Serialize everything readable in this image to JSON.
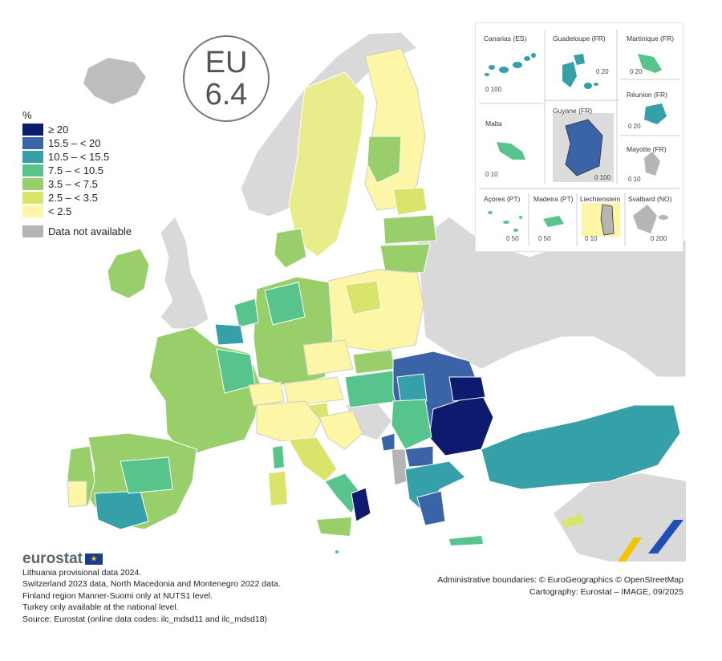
{
  "headline": {
    "region": "EU",
    "value": "6.4"
  },
  "legend": {
    "unit": "%",
    "classes": [
      {
        "label": "≥ 20",
        "color": "#0d1a6e"
      },
      {
        "label": "15.5 – < 20",
        "color": "#3a63a8"
      },
      {
        "label": "10.5 – < 15.5",
        "color": "#35a0a8"
      },
      {
        "label": "7.5 – < 10.5",
        "color": "#57c48c"
      },
      {
        "label": "3.5 – < 7.5",
        "color": "#98cf6a"
      },
      {
        "label": "2.5 – < 3.5",
        "color": "#d8e46a"
      },
      {
        "label": "< 2.5",
        "color": "#fdf6a6"
      }
    ],
    "not_available": {
      "label": "Data not available",
      "color": "#b5b5b5"
    }
  },
  "insets": {
    "canarias": {
      "name": "Canarias (ES)",
      "scale": "0  100"
    },
    "guadeloupe": {
      "name": "Guadeloupe (FR)",
      "scale": "0  20"
    },
    "martinique": {
      "name": "Martinique (FR)",
      "scale": "0  20"
    },
    "malta": {
      "name": "Malta",
      "scale": "0  10"
    },
    "guyane": {
      "name": "Guyane (FR)",
      "scale": "0  100"
    },
    "reunion": {
      "name": "Réunion (FR)",
      "scale": "0  20"
    },
    "mayotte": {
      "name": "Mayotte (FR)",
      "scale": "0  10"
    },
    "acores": {
      "name": "Açores (PT)",
      "scale": "0  50"
    },
    "madeira": {
      "name": "Madeira (PT)",
      "scale": "0  50"
    },
    "liechtenstein": {
      "name": "Liechtenstein",
      "scale": "0  10"
    },
    "svalbard": {
      "name": "Svalbard (NO)",
      "scale": "0  200"
    }
  },
  "footer": {
    "brand": "eurostat",
    "notes": [
      "Lithuania provisional data 2024.",
      "Switzerland 2023 data, North Macedonia and Montenegro 2022 data.",
      "Finland region Manner-Suomi only at NUTS1 level.",
      "Turkey only available at the national level.",
      "Source: Eurostat (online data codes: ilc_mdsd11 and ilc_mdsd18)"
    ],
    "credits": [
      "Administrative boundaries: © EuroGeographics © OpenStreetMap",
      "Cartography: Eurostat – IMAGE, 09/2025"
    ]
  }
}
